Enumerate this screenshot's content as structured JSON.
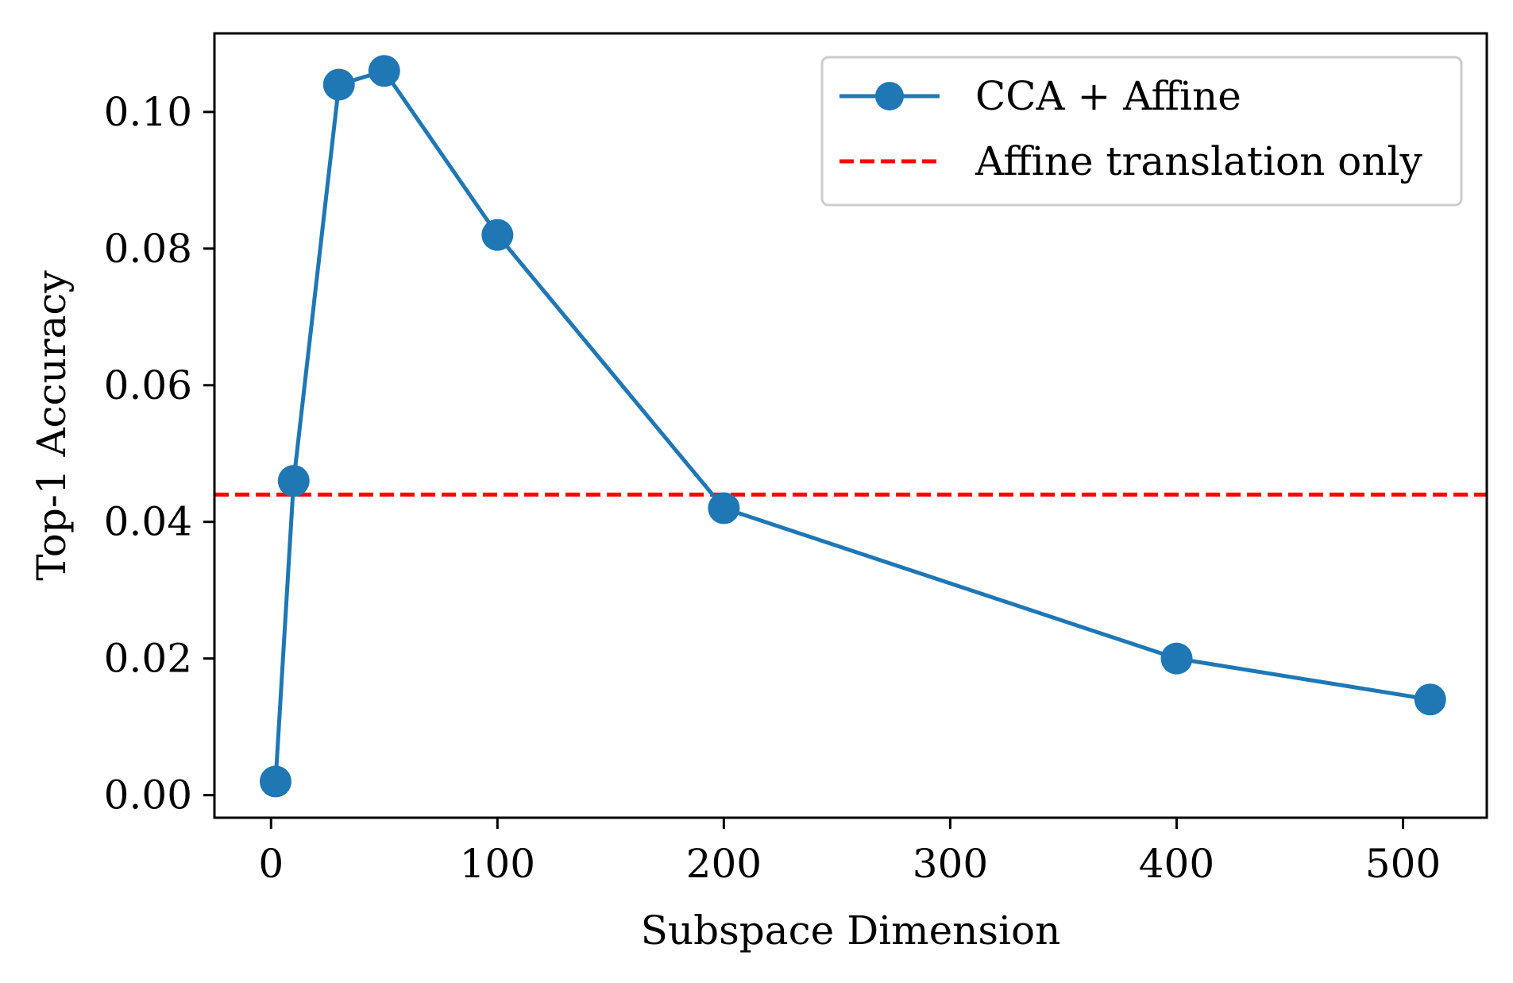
{
  "chart_data": {
    "type": "line",
    "title": "",
    "xlabel": "Subspace Dimension",
    "ylabel": "Top-1 Accuracy",
    "xlim": [
      -25,
      537
    ],
    "ylim": [
      -0.0033,
      0.1115
    ],
    "xticks": [
      0,
      100,
      200,
      300,
      400,
      500
    ],
    "xtick_labels": [
      "0",
      "100",
      "200",
      "300",
      "400",
      "500"
    ],
    "yticks": [
      0.0,
      0.02,
      0.04,
      0.06,
      0.08,
      0.1
    ],
    "ytick_labels": [
      "0.00",
      "0.02",
      "0.04",
      "0.06",
      "0.08",
      "0.10"
    ],
    "grid": false,
    "legend_position": "top-right",
    "series": [
      {
        "name": "CCA + Affine",
        "style": "solid-line-with-circle-markers",
        "color": "#1f77b4",
        "x": [
          2,
          10,
          30,
          50,
          100,
          200,
          400,
          512
        ],
        "y": [
          0.002,
          0.046,
          0.104,
          0.106,
          0.082,
          0.042,
          0.02,
          0.014
        ]
      }
    ],
    "reference_lines": [
      {
        "name": "Affine translation only",
        "orientation": "horizontal",
        "style": "dashed",
        "color": "#ff0000",
        "y": 0.044
      }
    ]
  }
}
